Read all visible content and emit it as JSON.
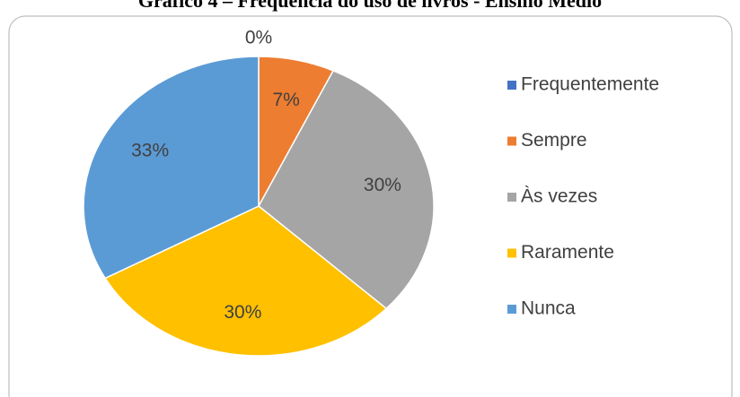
{
  "chart_data": {
    "type": "pie",
    "title": "Gráfico 4 – Frequência do uso de livros - Ensino Médio",
    "categories": [
      "Frequentemente",
      "Sempre",
      "Às vezes",
      "Raramente",
      "Nunca"
    ],
    "values": [
      0,
      7,
      30,
      30,
      33
    ],
    "value_labels": [
      "0%",
      "7%",
      "30%",
      "30%",
      "33%"
    ],
    "colors": [
      "#4472c4",
      "#ed7d31",
      "#a5a5a5",
      "#ffc000",
      "#5b9bd5"
    ],
    "legend": "right"
  }
}
